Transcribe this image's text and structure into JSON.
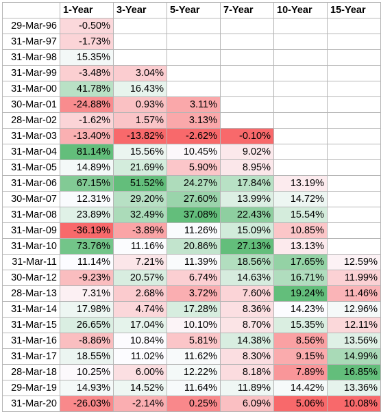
{
  "headers": [
    "",
    "1-Year",
    "3-Year",
    "5-Year",
    "7-Year",
    "10-Year",
    "15-Year"
  ],
  "rows": [
    {
      "date": "29-Mar-96",
      "values": [
        "-0.50%",
        "",
        "",
        "",
        "",
        ""
      ]
    },
    {
      "date": "31-Mar-97",
      "values": [
        "-1.73%",
        "",
        "",
        "",
        "",
        ""
      ]
    },
    {
      "date": "31-Mar-98",
      "values": [
        "15.35%",
        "",
        "",
        "",
        "",
        ""
      ]
    },
    {
      "date": "31-Mar-99",
      "values": [
        "-3.48%",
        "3.04%",
        "",
        "",
        "",
        ""
      ]
    },
    {
      "date": "31-Mar-00",
      "values": [
        "41.78%",
        "16.43%",
        "",
        "",
        "",
        ""
      ]
    },
    {
      "date": "30-Mar-01",
      "values": [
        "-24.88%",
        "0.93%",
        "3.11%",
        "",
        "",
        ""
      ]
    },
    {
      "date": "28-Mar-02",
      "values": [
        "-1.62%",
        "1.57%",
        "3.13%",
        "",
        "",
        ""
      ]
    },
    {
      "date": "31-Mar-03",
      "values": [
        "-13.40%",
        "-13.82%",
        "-2.62%",
        "-0.10%",
        "",
        ""
      ]
    },
    {
      "date": "31-Mar-04",
      "values": [
        "81.14%",
        "15.56%",
        "10.45%",
        "9.02%",
        "",
        ""
      ]
    },
    {
      "date": "31-Mar-05",
      "values": [
        "14.89%",
        "21.69%",
        "5.90%",
        "8.95%",
        "",
        ""
      ]
    },
    {
      "date": "31-Mar-06",
      "values": [
        "67.15%",
        "51.52%",
        "24.27%",
        "17.84%",
        "13.19%",
        ""
      ]
    },
    {
      "date": "30-Mar-07",
      "values": [
        "12.31%",
        "29.20%",
        "27.60%",
        "13.99%",
        "14.72%",
        ""
      ]
    },
    {
      "date": "31-Mar-08",
      "values": [
        "23.89%",
        "32.49%",
        "37.08%",
        "22.43%",
        "15.54%",
        ""
      ]
    },
    {
      "date": "31-Mar-09",
      "values": [
        "-36.19%",
        "-3.89%",
        "11.26%",
        "15.09%",
        "10.85%",
        ""
      ]
    },
    {
      "date": "31-Mar-10",
      "values": [
        "73.76%",
        "11.16%",
        "20.86%",
        "27.13%",
        "13.13%",
        ""
      ]
    },
    {
      "date": "31-Mar-11",
      "values": [
        "11.14%",
        "7.21%",
        "11.39%",
        "18.56%",
        "17.65%",
        "12.59%"
      ]
    },
    {
      "date": "30-Mar-12",
      "values": [
        "-9.23%",
        "20.57%",
        "6.74%",
        "14.63%",
        "16.71%",
        "11.99%"
      ]
    },
    {
      "date": "28-Mar-13",
      "values": [
        "7.31%",
        "2.68%",
        "3.72%",
        "7.60%",
        "19.24%",
        "11.46%"
      ]
    },
    {
      "date": "31-Mar-14",
      "values": [
        "17.98%",
        "4.74%",
        "17.28%",
        "8.36%",
        "14.23%",
        "12.96%"
      ]
    },
    {
      "date": "31-Mar-15",
      "values": [
        "26.65%",
        "17.04%",
        "10.10%",
        "8.70%",
        "15.35%",
        "12.11%"
      ]
    },
    {
      "date": "31-Mar-16",
      "values": [
        "-8.86%",
        "10.84%",
        "5.81%",
        "14.38%",
        "8.56%",
        "13.56%"
      ]
    },
    {
      "date": "31-Mar-17",
      "values": [
        "18.55%",
        "11.02%",
        "11.62%",
        "8.30%",
        "9.15%",
        "14.99%"
      ]
    },
    {
      "date": "28-Mar-18",
      "values": [
        "10.25%",
        "6.00%",
        "12.22%",
        "8.18%",
        "7.89%",
        "16.85%"
      ]
    },
    {
      "date": "29-Mar-19",
      "values": [
        "14.93%",
        "14.52%",
        "11.64%",
        "11.89%",
        "14.42%",
        "13.36%"
      ]
    },
    {
      "date": "31-Mar-20",
      "values": [
        "-26.03%",
        "-2.14%",
        "0.25%",
        "6.09%",
        "5.06%",
        "10.08%"
      ]
    }
  ],
  "colors": {
    "high": "#63be7b",
    "mid": "#fcfcff",
    "low": "#f8696b",
    "border": "#b5b5b5"
  }
}
